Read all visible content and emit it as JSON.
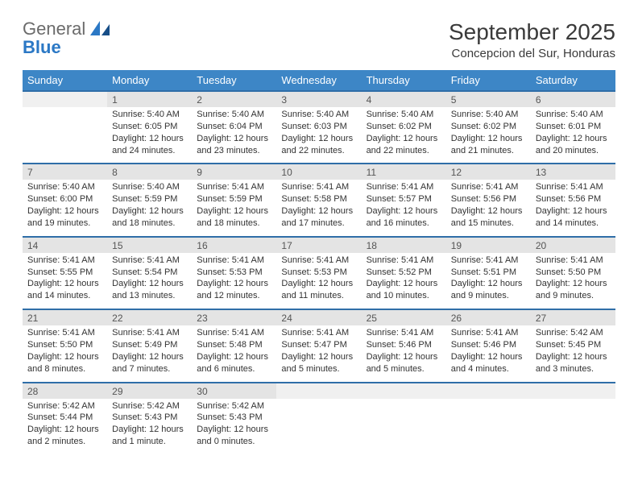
{
  "logo": {
    "word1": "General",
    "word2": "Blue"
  },
  "title": "September 2025",
  "location": "Concepcion del Sur, Honduras",
  "colors": {
    "header_bg": "#3d86c6",
    "header_text": "#ffffff",
    "daynum_bg": "#e4e4e4",
    "rule": "#2f6ea8",
    "logo_gray": "#6b6b6b",
    "logo_blue": "#2b78c5"
  },
  "weekdays": [
    "Sunday",
    "Monday",
    "Tuesday",
    "Wednesday",
    "Thursday",
    "Friday",
    "Saturday"
  ],
  "weeks": [
    [
      {
        "blank": true
      },
      {
        "day": "1",
        "sunrise": "Sunrise: 5:40 AM",
        "sunset": "Sunset: 6:05 PM",
        "daylight1": "Daylight: 12 hours",
        "daylight2": "and 24 minutes."
      },
      {
        "day": "2",
        "sunrise": "Sunrise: 5:40 AM",
        "sunset": "Sunset: 6:04 PM",
        "daylight1": "Daylight: 12 hours",
        "daylight2": "and 23 minutes."
      },
      {
        "day": "3",
        "sunrise": "Sunrise: 5:40 AM",
        "sunset": "Sunset: 6:03 PM",
        "daylight1": "Daylight: 12 hours",
        "daylight2": "and 22 minutes."
      },
      {
        "day": "4",
        "sunrise": "Sunrise: 5:40 AM",
        "sunset": "Sunset: 6:02 PM",
        "daylight1": "Daylight: 12 hours",
        "daylight2": "and 22 minutes."
      },
      {
        "day": "5",
        "sunrise": "Sunrise: 5:40 AM",
        "sunset": "Sunset: 6:02 PM",
        "daylight1": "Daylight: 12 hours",
        "daylight2": "and 21 minutes."
      },
      {
        "day": "6",
        "sunrise": "Sunrise: 5:40 AM",
        "sunset": "Sunset: 6:01 PM",
        "daylight1": "Daylight: 12 hours",
        "daylight2": "and 20 minutes."
      }
    ],
    [
      {
        "day": "7",
        "sunrise": "Sunrise: 5:40 AM",
        "sunset": "Sunset: 6:00 PM",
        "daylight1": "Daylight: 12 hours",
        "daylight2": "and 19 minutes."
      },
      {
        "day": "8",
        "sunrise": "Sunrise: 5:40 AM",
        "sunset": "Sunset: 5:59 PM",
        "daylight1": "Daylight: 12 hours",
        "daylight2": "and 18 minutes."
      },
      {
        "day": "9",
        "sunrise": "Sunrise: 5:41 AM",
        "sunset": "Sunset: 5:59 PM",
        "daylight1": "Daylight: 12 hours",
        "daylight2": "and 18 minutes."
      },
      {
        "day": "10",
        "sunrise": "Sunrise: 5:41 AM",
        "sunset": "Sunset: 5:58 PM",
        "daylight1": "Daylight: 12 hours",
        "daylight2": "and 17 minutes."
      },
      {
        "day": "11",
        "sunrise": "Sunrise: 5:41 AM",
        "sunset": "Sunset: 5:57 PM",
        "daylight1": "Daylight: 12 hours",
        "daylight2": "and 16 minutes."
      },
      {
        "day": "12",
        "sunrise": "Sunrise: 5:41 AM",
        "sunset": "Sunset: 5:56 PM",
        "daylight1": "Daylight: 12 hours",
        "daylight2": "and 15 minutes."
      },
      {
        "day": "13",
        "sunrise": "Sunrise: 5:41 AM",
        "sunset": "Sunset: 5:56 PM",
        "daylight1": "Daylight: 12 hours",
        "daylight2": "and 14 minutes."
      }
    ],
    [
      {
        "day": "14",
        "sunrise": "Sunrise: 5:41 AM",
        "sunset": "Sunset: 5:55 PM",
        "daylight1": "Daylight: 12 hours",
        "daylight2": "and 14 minutes."
      },
      {
        "day": "15",
        "sunrise": "Sunrise: 5:41 AM",
        "sunset": "Sunset: 5:54 PM",
        "daylight1": "Daylight: 12 hours",
        "daylight2": "and 13 minutes."
      },
      {
        "day": "16",
        "sunrise": "Sunrise: 5:41 AM",
        "sunset": "Sunset: 5:53 PM",
        "daylight1": "Daylight: 12 hours",
        "daylight2": "and 12 minutes."
      },
      {
        "day": "17",
        "sunrise": "Sunrise: 5:41 AM",
        "sunset": "Sunset: 5:53 PM",
        "daylight1": "Daylight: 12 hours",
        "daylight2": "and 11 minutes."
      },
      {
        "day": "18",
        "sunrise": "Sunrise: 5:41 AM",
        "sunset": "Sunset: 5:52 PM",
        "daylight1": "Daylight: 12 hours",
        "daylight2": "and 10 minutes."
      },
      {
        "day": "19",
        "sunrise": "Sunrise: 5:41 AM",
        "sunset": "Sunset: 5:51 PM",
        "daylight1": "Daylight: 12 hours",
        "daylight2": "and 9 minutes."
      },
      {
        "day": "20",
        "sunrise": "Sunrise: 5:41 AM",
        "sunset": "Sunset: 5:50 PM",
        "daylight1": "Daylight: 12 hours",
        "daylight2": "and 9 minutes."
      }
    ],
    [
      {
        "day": "21",
        "sunrise": "Sunrise: 5:41 AM",
        "sunset": "Sunset: 5:50 PM",
        "daylight1": "Daylight: 12 hours",
        "daylight2": "and 8 minutes."
      },
      {
        "day": "22",
        "sunrise": "Sunrise: 5:41 AM",
        "sunset": "Sunset: 5:49 PM",
        "daylight1": "Daylight: 12 hours",
        "daylight2": "and 7 minutes."
      },
      {
        "day": "23",
        "sunrise": "Sunrise: 5:41 AM",
        "sunset": "Sunset: 5:48 PM",
        "daylight1": "Daylight: 12 hours",
        "daylight2": "and 6 minutes."
      },
      {
        "day": "24",
        "sunrise": "Sunrise: 5:41 AM",
        "sunset": "Sunset: 5:47 PM",
        "daylight1": "Daylight: 12 hours",
        "daylight2": "and 5 minutes."
      },
      {
        "day": "25",
        "sunrise": "Sunrise: 5:41 AM",
        "sunset": "Sunset: 5:46 PM",
        "daylight1": "Daylight: 12 hours",
        "daylight2": "and 5 minutes."
      },
      {
        "day": "26",
        "sunrise": "Sunrise: 5:41 AM",
        "sunset": "Sunset: 5:46 PM",
        "daylight1": "Daylight: 12 hours",
        "daylight2": "and 4 minutes."
      },
      {
        "day": "27",
        "sunrise": "Sunrise: 5:42 AM",
        "sunset": "Sunset: 5:45 PM",
        "daylight1": "Daylight: 12 hours",
        "daylight2": "and 3 minutes."
      }
    ],
    [
      {
        "day": "28",
        "sunrise": "Sunrise: 5:42 AM",
        "sunset": "Sunset: 5:44 PM",
        "daylight1": "Daylight: 12 hours",
        "daylight2": "and 2 minutes."
      },
      {
        "day": "29",
        "sunrise": "Sunrise: 5:42 AM",
        "sunset": "Sunset: 5:43 PM",
        "daylight1": "Daylight: 12 hours",
        "daylight2": "and 1 minute."
      },
      {
        "day": "30",
        "sunrise": "Sunrise: 5:42 AM",
        "sunset": "Sunset: 5:43 PM",
        "daylight1": "Daylight: 12 hours",
        "daylight2": "and 0 minutes."
      },
      {
        "blank": true
      },
      {
        "blank": true
      },
      {
        "blank": true
      },
      {
        "blank": true
      }
    ]
  ]
}
